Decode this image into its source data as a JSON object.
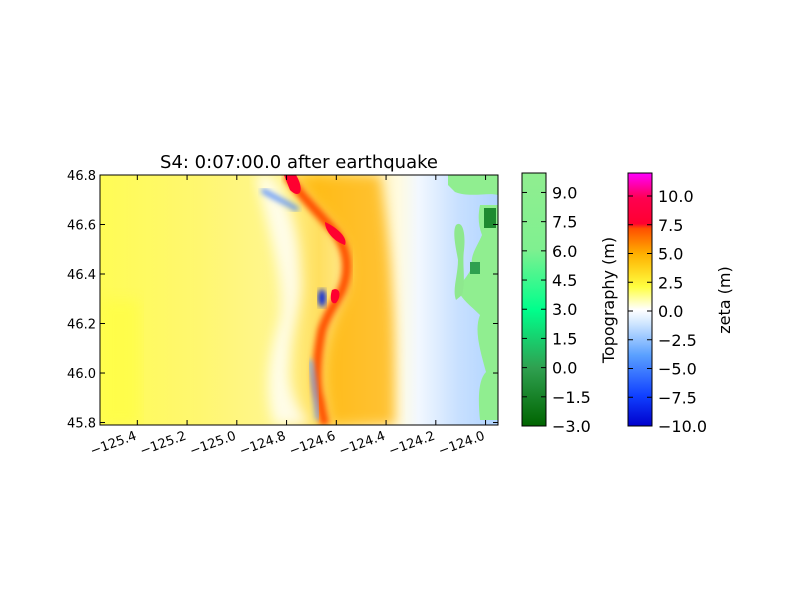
{
  "chart_data": {
    "type": "heatmap",
    "title": "S4: 0:07:00.0 after earthquake",
    "xlabel": "",
    "ylabel": "",
    "xlim": [
      -125.55,
      -123.95
    ],
    "ylim": [
      45.79,
      46.8
    ],
    "x_ticks": [
      {
        "value": -125.4,
        "label": "−125.4"
      },
      {
        "value": -125.2,
        "label": "−125.2"
      },
      {
        "value": -125.0,
        "label": "−125.0"
      },
      {
        "value": -124.8,
        "label": "−124.8"
      },
      {
        "value": -124.6,
        "label": "−124.6"
      },
      {
        "value": -124.4,
        "label": "−124.4"
      },
      {
        "value": -124.2,
        "label": "−124.2"
      },
      {
        "value": -124.0,
        "label": "−124.0"
      }
    ],
    "y_ticks": [
      {
        "value": 45.8,
        "label": "45.8"
      },
      {
        "value": 46.0,
        "label": "46.0"
      },
      {
        "value": 46.2,
        "label": "46.2"
      },
      {
        "value": 46.4,
        "label": "46.4"
      },
      {
        "value": 46.6,
        "label": "46.6"
      },
      {
        "value": 46.8,
        "label": "46.8"
      }
    ],
    "wave_front": [
      {
        "lat": 46.8,
        "lon": -124.77,
        "zeta": 9.0
      },
      {
        "lat": 46.6,
        "lon": -124.6,
        "zeta": 8.5
      },
      {
        "lat": 46.45,
        "lon": -124.53,
        "zeta": 8.0
      },
      {
        "lat": 46.3,
        "lon": -124.57,
        "zeta": 8.0
      },
      {
        "lat": 46.1,
        "lon": -124.61,
        "zeta": 6.0
      },
      {
        "lat": 45.8,
        "lon": -124.57,
        "zeta": 6.5
      }
    ],
    "colorbars": [
      {
        "label": "Topography (m)",
        "range": [
          -3.0,
          10.0
        ],
        "ticks": [
          "−3.0",
          "−1.5",
          "0.0",
          "1.5",
          "3.0",
          "4.5",
          "6.0",
          "7.5",
          "9.0"
        ],
        "tick_values": [
          -3.0,
          -1.5,
          0.0,
          1.5,
          3.0,
          4.5,
          6.0,
          7.5,
          9.0
        ],
        "colors": [
          "#006400",
          "#2fa050",
          "#00ff8c",
          "#80f090",
          "#90ee90"
        ]
      },
      {
        "label": "zeta (m)",
        "range": [
          -10.0,
          12.0
        ],
        "ticks": [
          "−10.0",
          "−7.5",
          "−5.0",
          "−2.5",
          "0.0",
          "2.5",
          "5.0",
          "7.5",
          "10.0"
        ],
        "tick_values": [
          -10.0,
          -7.5,
          -5.0,
          -2.5,
          0.0,
          2.5,
          5.0,
          7.5,
          10.0
        ],
        "colors": [
          "#0000cc",
          "#2060ff",
          "#a8d0ff",
          "#ffffff",
          "#ffff40",
          "#ffa000",
          "#ff0030",
          "#ff00ff"
        ]
      }
    ]
  }
}
